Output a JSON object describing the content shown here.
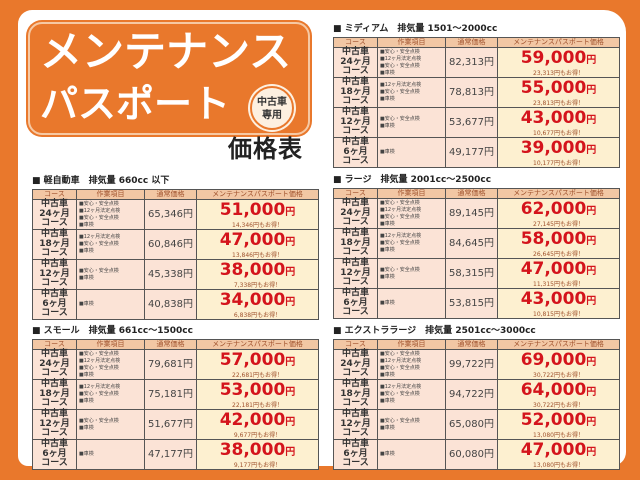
{
  "title": {
    "line1": "メンテナンス",
    "line2": "パスポート",
    "badge_line1": "中古車",
    "badge_line2": "専用",
    "subtitle": "価格表"
  },
  "headers": {
    "course": "コース",
    "work": "作業項目",
    "regular": "通常価格",
    "passport": "メンテナンスパスポート価格"
  },
  "courses": [
    {
      "label": [
        "中古車",
        "24ヶ月",
        "コース"
      ],
      "work": [
        "■安心・安全点検",
        "■12ヶ月法定点検",
        "■安心・安全点検",
        "■車検"
      ]
    },
    {
      "label": [
        "中古車",
        "18ヶ月",
        "コース"
      ],
      "work": [
        "■12ヶ月法定点検",
        "■安心・安全点検",
        "■車検"
      ]
    },
    {
      "label": [
        "中古車",
        "12ヶ月",
        "コース"
      ],
      "work": [
        "■安心・安全点検",
        "■車検"
      ]
    },
    {
      "label": [
        "中古車",
        "6ヶ月",
        "コース"
      ],
      "work": [
        "■車検"
      ]
    }
  ],
  "yen": "円",
  "tables": [
    {
      "heading": "■ 軽自動車　排気量 660cc 以下",
      "regular": [
        "65,346円",
        "60,846円",
        "45,338円",
        "40,838円"
      ],
      "price": [
        "51,000",
        "47,000",
        "38,000",
        "34,000"
      ],
      "saving": [
        "14,346円もお得！",
        "13,846円もお得！",
        "7,338円もお得！",
        "6,838円もお得！"
      ]
    },
    {
      "heading": "■ スモール　排気量 661cc〜1500cc",
      "regular": [
        "79,681円",
        "75,181円",
        "51,677円",
        "47,177円"
      ],
      "price": [
        "57,000",
        "53,000",
        "42,000",
        "38,000"
      ],
      "saving": [
        "22,681円もお得！",
        "22,181円もお得！",
        "9,677円もお得！",
        "9,177円もお得！"
      ]
    },
    {
      "heading": "■ ミディアム　排気量 1501〜2000cc",
      "regular": [
        "82,313円",
        "78,813円",
        "53,677円",
        "49,177円"
      ],
      "price": [
        "59,000",
        "55,000",
        "43,000",
        "39,000"
      ],
      "saving": [
        "23,313円もお得！",
        "23,813円もお得！",
        "10,677円もお得！",
        "10,177円もお得！"
      ]
    },
    {
      "heading": "■ ラージ　排気量 2001cc〜2500cc",
      "regular": [
        "89,145円",
        "84,645円",
        "58,315円",
        "53,815円"
      ],
      "price": [
        "62,000",
        "58,000",
        "47,000",
        "43,000"
      ],
      "saving": [
        "27,145円もお得！",
        "26,645円もお得！",
        "11,315円もお得！",
        "10,815円もお得！"
      ]
    },
    {
      "heading": "■ エクストララージ　排気量 2501cc〜3000cc",
      "regular": [
        "99,722円",
        "94,722円",
        "65,080円",
        "60,080円"
      ],
      "price": [
        "69,000",
        "64,000",
        "52,000",
        "47,000"
      ],
      "saving": [
        "30,722円もお得！",
        "30,722円もお得！",
        "13,080円もお得！",
        "13,080円もお得！"
      ]
    }
  ]
}
